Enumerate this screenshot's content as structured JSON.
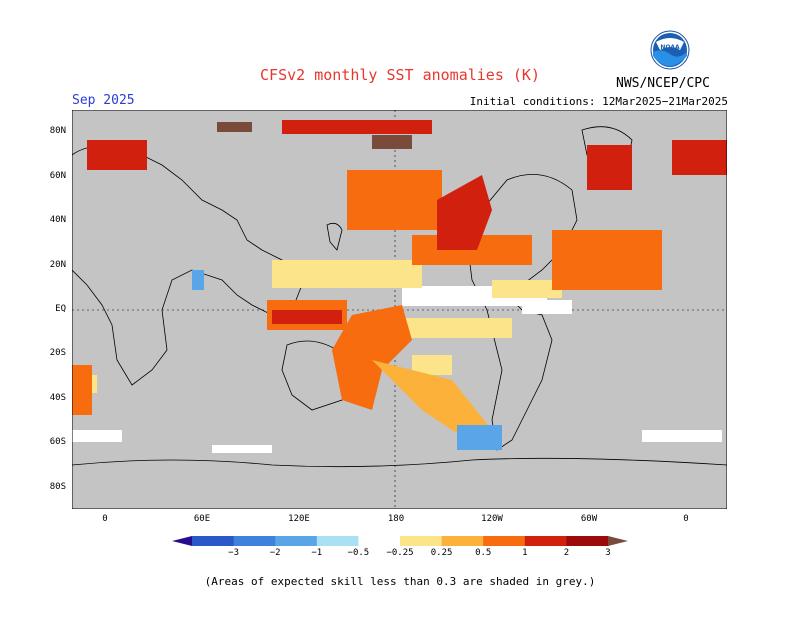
{
  "title": "CFSv2 monthly SST anomalies (K)",
  "month_label": "Sep 2025",
  "agency": "NWS/NCEP/CPC",
  "logo_text": "NOAA",
  "initial_conditions": "Initial conditions: 12Mar2025−21Mar2025",
  "footnote": "(Areas of expected skill less than 0.3 are shaded in grey.)",
  "lat_labels": [
    "80N",
    "60N",
    "40N",
    "20N",
    "EQ",
    "20S",
    "40S",
    "60S",
    "80S"
  ],
  "lon_labels": [
    "0",
    "60E",
    "120E",
    "180",
    "120W",
    "60W",
    "0"
  ],
  "colorbar": {
    "colors": [
      "#2a0c8e",
      "#2a58c8",
      "#3f82dc",
      "#5aa4e8",
      "#a8e0f4",
      "#ffffff",
      "#fbe489",
      "#fbb13a",
      "#f66c0e",
      "#d2200e",
      "#9c0a0a",
      "#7a4a3a"
    ],
    "tick_labels": [
      "−3",
      "−2",
      "−1",
      "−0.5",
      "−0.25",
      "0.25",
      "0.5",
      "1",
      "2",
      "3"
    ]
  },
  "colors": {
    "grey": "#c4c4c4",
    "accent_title": "#e8362e",
    "month": "#2a3dd8"
  }
}
